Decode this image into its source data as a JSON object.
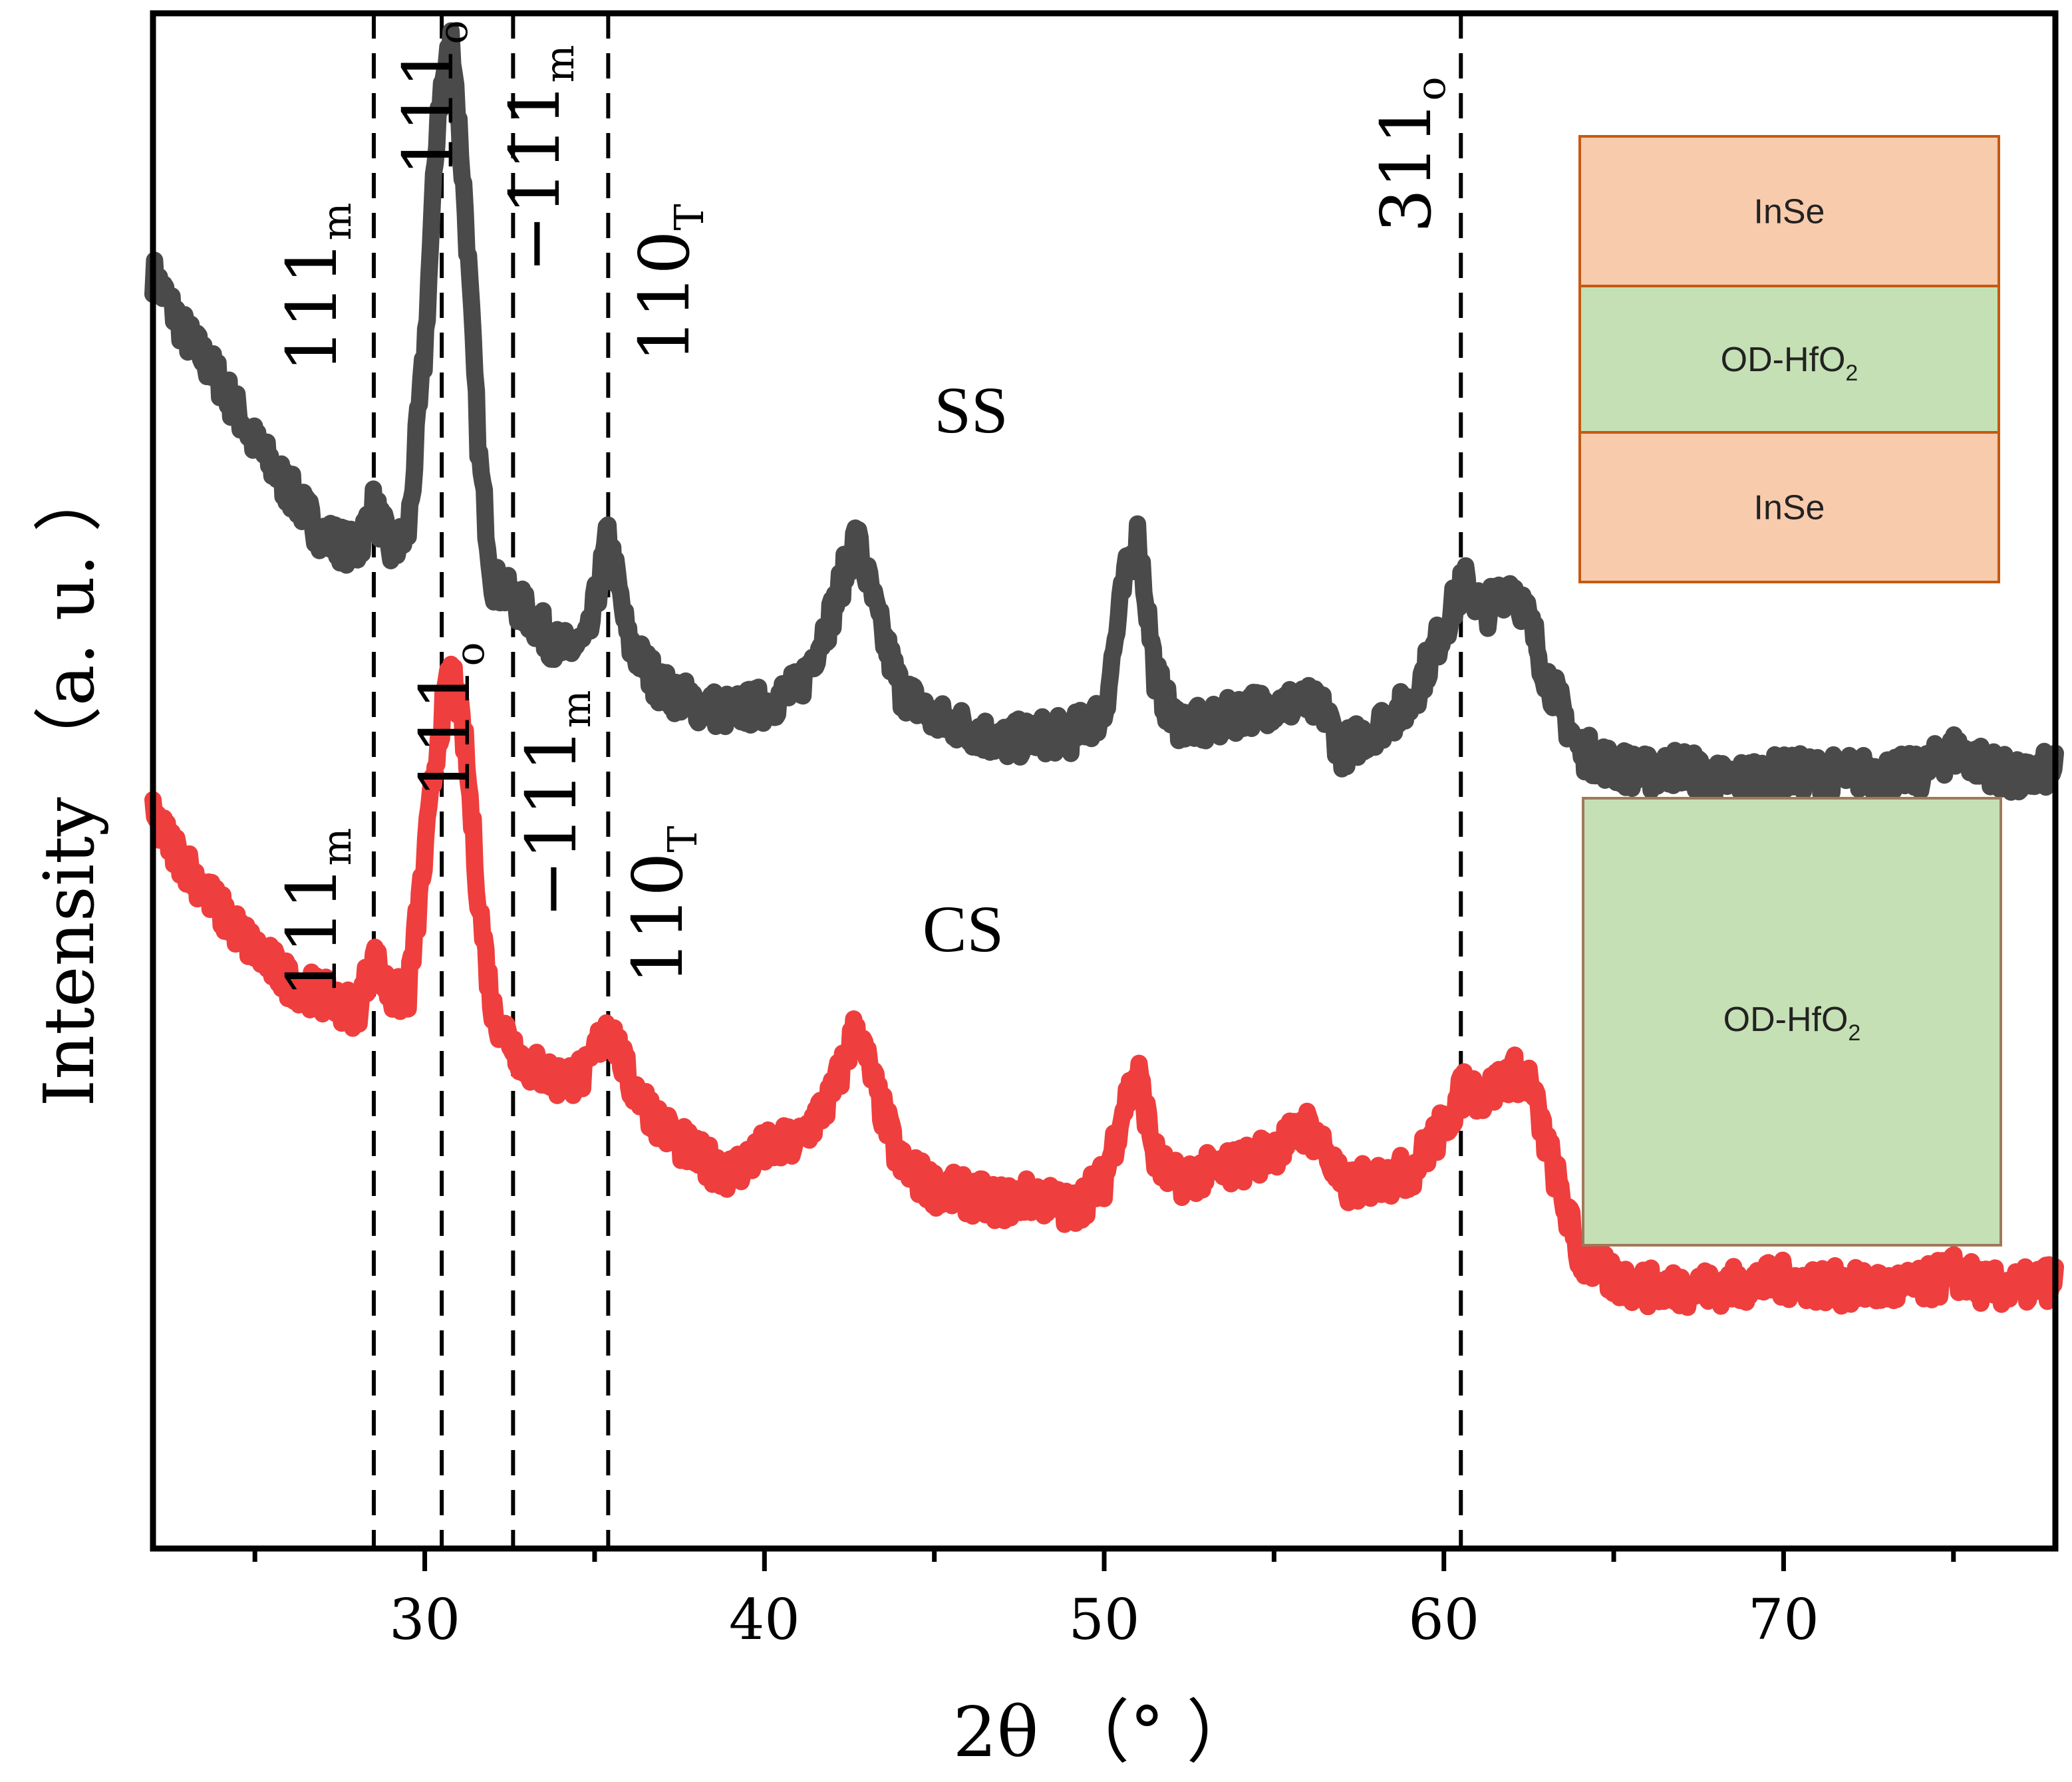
{
  "chart_data": {
    "type": "line",
    "title": "",
    "xlabel": "2θ （° ）",
    "ylabel": "Intensity （a. u. ）",
    "xlim": [
      22,
      78
    ],
    "ylim": [
      0,
      10
    ],
    "x_ticks": [
      30,
      40,
      50,
      60,
      70
    ],
    "x_tick_labels": [
      "30",
      "40",
      "50",
      "60",
      "70"
    ],
    "grid": false,
    "legend": "none",
    "y_ticks_shown": false,
    "series": [
      {
        "name": "SS",
        "label": "SS",
        "color": "#4a4a4a",
        "x": [
          22,
          23,
          24,
          25,
          26,
          27,
          28,
          28.5,
          29,
          29.5,
          30,
          30.4,
          30.8,
          31.2,
          31.6,
          32,
          33,
          34,
          34.8,
          35.4,
          36,
          37,
          38,
          39,
          40,
          41,
          42,
          42.7,
          43.4,
          44,
          45,
          46,
          47,
          48,
          49,
          50,
          50.6,
          51,
          51.5,
          52,
          53,
          54,
          55,
          56,
          56.5,
          57,
          58,
          59,
          60,
          60.6,
          61.2,
          62,
          62.5,
          63,
          64,
          65,
          66,
          67,
          68,
          70,
          72,
          74,
          75,
          76,
          77,
          78
        ],
        "y": [
          8.3,
          7.9,
          7.6,
          7.2,
          6.9,
          6.6,
          6.5,
          6.8,
          6.5,
          6.6,
          7.8,
          9.4,
          9.85,
          8.7,
          7.1,
          6.3,
          6.1,
          5.85,
          5.9,
          6.6,
          5.9,
          5.6,
          5.5,
          5.45,
          5.5,
          5.6,
          6.1,
          6.6,
          6.0,
          5.6,
          5.4,
          5.35,
          5.25,
          5.3,
          5.3,
          5.45,
          6.3,
          6.6,
          5.7,
          5.4,
          5.35,
          5.45,
          5.5,
          5.5,
          5.45,
          5.2,
          5.35,
          5.5,
          6.0,
          6.3,
          6.1,
          6.3,
          6.05,
          5.7,
          5.2,
          5.1,
          5.05,
          5.1,
          5.0,
          5.05,
          5.05,
          5.05,
          5.2,
          5.1,
          5.0,
          5.1
        ]
      },
      {
        "name": "CS",
        "label": "CS",
        "color": "#ef3e3e",
        "x": [
          22,
          23,
          24,
          25,
          26,
          27,
          28,
          28.5,
          29,
          29.5,
          30,
          30.4,
          30.8,
          31.2,
          31.6,
          32,
          33,
          34,
          34.8,
          35.4,
          36,
          37,
          38,
          39,
          40,
          41,
          42,
          42.7,
          43.4,
          44,
          45,
          46,
          47,
          48,
          49,
          50,
          50.6,
          51,
          51.5,
          52,
          53,
          54,
          55,
          56,
          56.5,
          57,
          58,
          59,
          60,
          60.6,
          61.2,
          62,
          62.5,
          63,
          64,
          65,
          66,
          67,
          68,
          70,
          72,
          74,
          75,
          76,
          77,
          78
        ],
        "y": [
          4.75,
          4.45,
          4.15,
          3.9,
          3.7,
          3.6,
          3.5,
          3.85,
          3.6,
          3.6,
          4.5,
          5.3,
          5.75,
          5.2,
          4.2,
          3.5,
          3.15,
          3.05,
          3.1,
          3.45,
          3.05,
          2.75,
          2.55,
          2.45,
          2.6,
          2.65,
          2.95,
          3.4,
          2.9,
          2.5,
          2.35,
          2.3,
          2.25,
          2.3,
          2.2,
          2.4,
          2.9,
          3.1,
          2.55,
          2.4,
          2.45,
          2.5,
          2.6,
          2.75,
          2.6,
          2.35,
          2.4,
          2.45,
          2.75,
          3.0,
          2.95,
          3.1,
          3.05,
          2.65,
          1.9,
          1.75,
          1.7,
          1.7,
          1.7,
          1.75,
          1.7,
          1.7,
          1.8,
          1.7,
          1.7,
          1.75
        ]
      }
    ],
    "reference_lines": [
      {
        "x": 28.5,
        "name": "111m"
      },
      {
        "x": 30.5,
        "name": "111o"
      },
      {
        "x": 32.6,
        "name": "-111m"
      },
      {
        "x": 35.4,
        "name": "110T"
      },
      {
        "x": 60.5,
        "name": "311o"
      }
    ],
    "annotations": {
      "ss": [
        {
          "base": "111",
          "sub": "m"
        },
        {
          "base": "111",
          "sub": "o"
        },
        {
          "base": "−111",
          "sub": "m"
        },
        {
          "base": "110",
          "sub": "T"
        },
        {
          "base": "311",
          "sub": "o"
        }
      ],
      "cs": [
        {
          "base": "111",
          "sub": "m"
        },
        {
          "base": "111",
          "sub": "o"
        },
        {
          "base": "−111",
          "sub": "m"
        },
        {
          "base": "110",
          "sub": "T"
        }
      ]
    },
    "insets": {
      "ss_stack": {
        "layers": [
          {
            "name": "InSe",
            "base": "InSe",
            "sub": "",
            "color": "#f8cbad"
          },
          {
            "name": "OD-HfO2",
            "base": "OD-HfO",
            "sub": "2",
            "color": "#c5e0b4"
          },
          {
            "name": "InSe",
            "base": "InSe",
            "sub": "",
            "color": "#f8cbad"
          }
        ],
        "border_color": "#c55a11"
      },
      "cs_stack": {
        "layers": [
          {
            "name": "OD-HfO2",
            "base": "OD-HfO",
            "sub": "2",
            "color": "#c5e0b4"
          }
        ],
        "border_color": "#a0785a"
      }
    }
  }
}
